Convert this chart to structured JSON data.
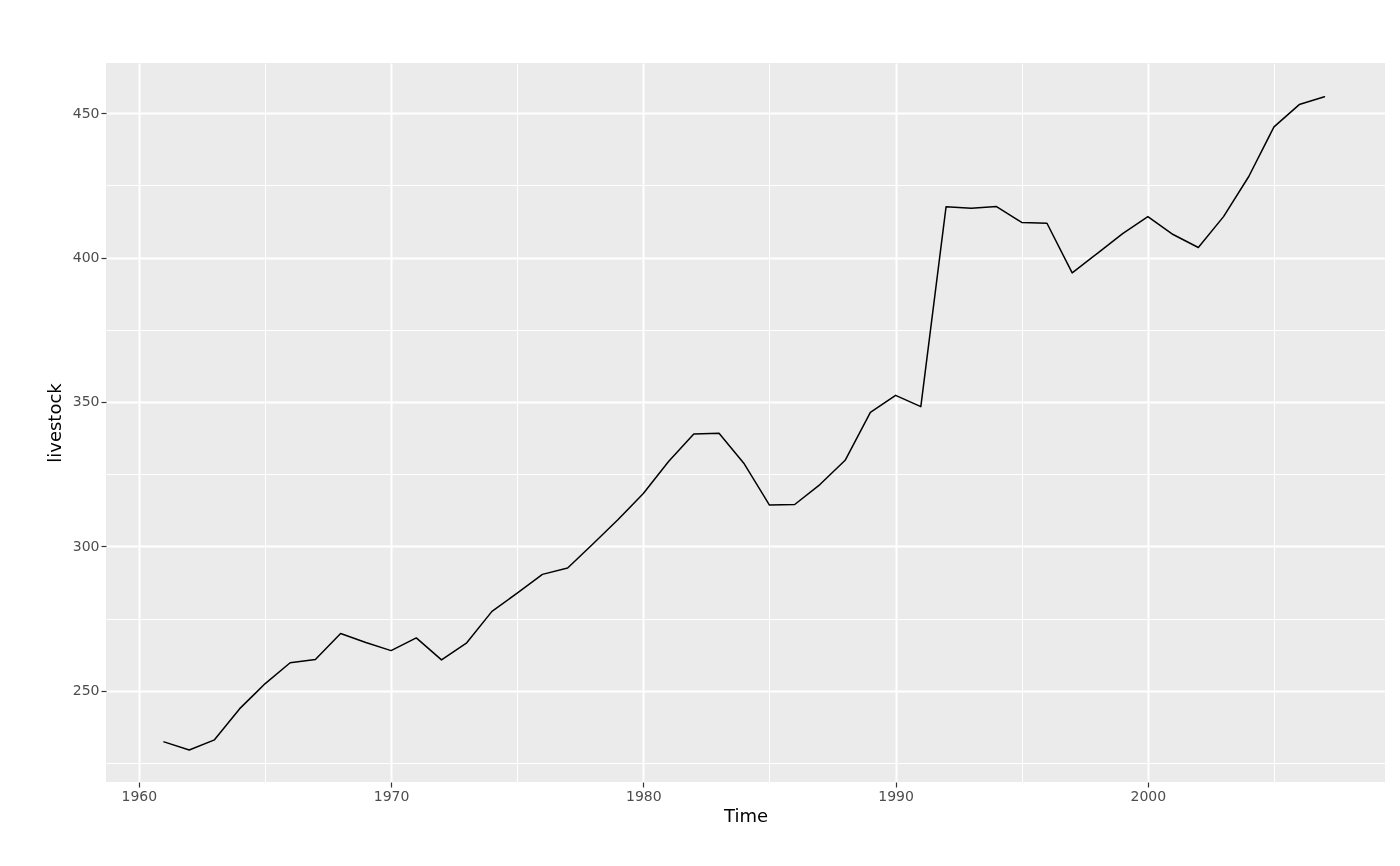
{
  "chart_data": {
    "type": "line",
    "xlabel": "Time",
    "ylabel": "livestock",
    "x": [
      1961,
      1962,
      1963,
      1964,
      1965,
      1966,
      1967,
      1968,
      1969,
      1970,
      1971,
      1972,
      1973,
      1974,
      1975,
      1976,
      1977,
      1978,
      1979,
      1980,
      1981,
      1982,
      1983,
      1984,
      1985,
      1986,
      1987,
      1988,
      1989,
      1990,
      1991,
      1992,
      1993,
      1994,
      1995,
      1996,
      1997,
      1998,
      1999,
      2000,
      2001,
      2002,
      2003,
      2004,
      2005,
      2006,
      2007
    ],
    "series": [
      {
        "color": "#000000",
        "values": [
          232.3,
          229.5,
          233.0,
          243.8,
          252.4,
          259.7,
          260.8,
          269.8,
          266.7,
          263.9,
          268.3,
          260.7,
          266.6,
          277.5,
          283.8,
          290.3,
          292.5,
          300.8,
          309.3,
          318.3,
          329.4,
          338.9,
          339.2,
          328.6,
          314.3,
          314.5,
          321.4,
          329.8,
          346.4,
          352.3,
          348.4,
          417.6,
          417.1,
          417.7,
          412.2,
          411.9,
          394.7,
          401.5,
          408.3,
          414.2,
          408.0,
          403.5,
          414.2,
          428.1,
          445.3,
          453.0,
          455.7
        ]
      }
    ],
    "xlim": [
      1958.7,
      2009.4
    ],
    "ylim": [
      218.4,
      467.4
    ],
    "xticks": [
      1960,
      {
        "value": 1965,
        "label": null
      },
      1970,
      {
        "value": 1975,
        "label": null
      },
      1980,
      {
        "value": 1985,
        "label": null
      },
      1990,
      {
        "value": 1995,
        "label": null
      },
      2000,
      {
        "value": 2005,
        "label": null
      }
    ],
    "yticks": [
      {
        "value": 225,
        "label": null
      },
      250,
      {
        "value": 275,
        "label": null
      },
      300,
      {
        "value": 325,
        "label": null
      },
      350,
      {
        "value": 375,
        "label": null
      },
      400,
      {
        "value": 425,
        "label": null
      },
      450
    ],
    "grid": true,
    "legend": false,
    "marker": "none",
    "line_style": "solid"
  }
}
